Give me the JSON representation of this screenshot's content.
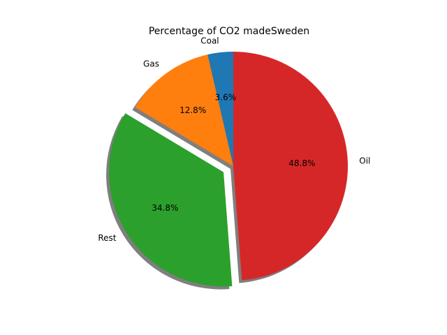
{
  "chart_data": {
    "type": "pie",
    "title": "Percentage of CO2 madeSweden",
    "slices": [
      {
        "label": "Coal",
        "value": 3.6,
        "pct_label": "3.6%",
        "color": "#1f77b4",
        "exploded": false
      },
      {
        "label": "Gas",
        "value": 12.8,
        "pct_label": "12.8%",
        "color": "#ff7f0e",
        "exploded": false
      },
      {
        "label": "Rest",
        "value": 34.8,
        "pct_label": "34.8%",
        "color": "#2ca02c",
        "exploded": true
      },
      {
        "label": "Oil",
        "value": 48.8,
        "pct_label": "48.8%",
        "color": "#d62728",
        "exploded": false
      }
    ],
    "start_angle_deg": 90,
    "direction": "counterclockwise",
    "shadow": true
  }
}
